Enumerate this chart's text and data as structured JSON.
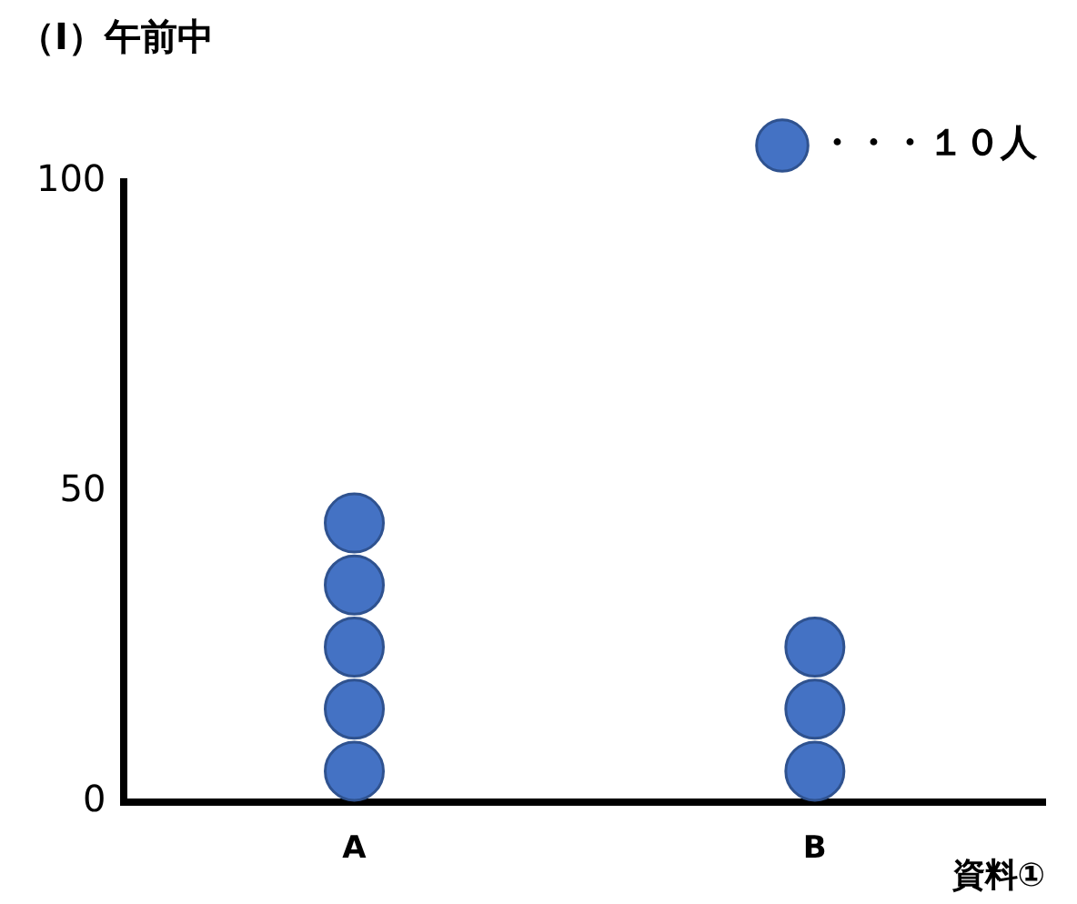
{
  "chart_data": {
    "type": "scatter",
    "title": "（Ⅰ）午前中",
    "xlabel": "資料①",
    "categories": [
      "A",
      "B"
    ],
    "series": [
      {
        "name": "・・・１０人",
        "color": "#4472c4",
        "x": [
          "A",
          "A",
          "A",
          "A",
          "A",
          "B",
          "B",
          "B"
        ],
        "values": [
          5,
          15,
          25,
          35,
          45,
          5,
          15,
          25
        ]
      }
    ],
    "ylim": [
      0,
      100
    ],
    "yticks": [
      0,
      50,
      100
    ],
    "grid": false,
    "legend": "top right",
    "marker": "circle"
  }
}
